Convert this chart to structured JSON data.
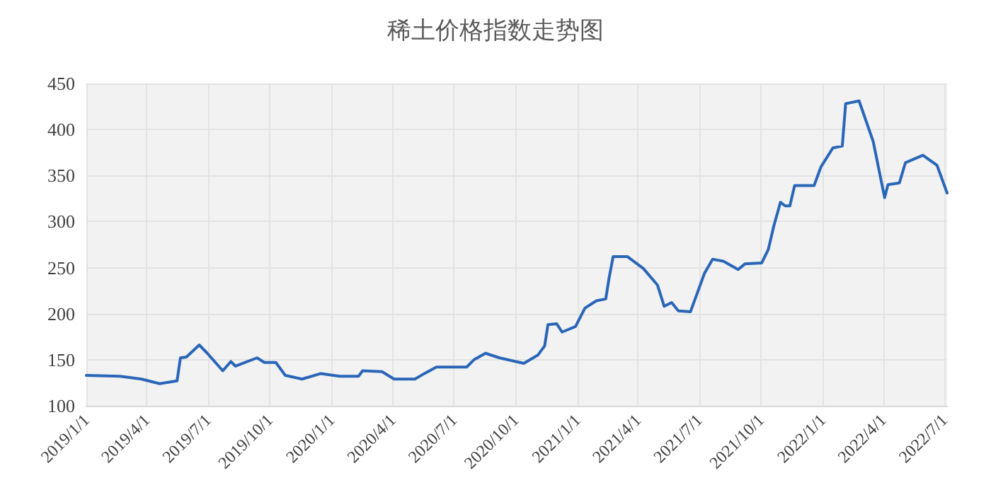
{
  "chart_data": {
    "type": "line",
    "title": "稀土价格指数走势图",
    "x": [
      "2019-01-01",
      "2019-02-20",
      "2019-03-24",
      "2019-04-20",
      "2019-05-16",
      "2019-05-21",
      "2019-05-30",
      "2019-06-18",
      "2019-06-30",
      "2019-07-23",
      "2019-08-04",
      "2019-08-11",
      "2019-09-12",
      "2019-09-23",
      "2019-10-10",
      "2019-10-24",
      "2019-11-18",
      "2019-12-16",
      "2020-01-13",
      "2020-02-10",
      "2020-02-16",
      "2020-03-16",
      "2020-04-03",
      "2020-05-04",
      "2020-05-18",
      "2020-06-05",
      "2020-06-19",
      "2020-07-20",
      "2020-07-31",
      "2020-08-17",
      "2020-09-07",
      "2020-10-13",
      "2020-11-03",
      "2020-11-13",
      "2020-11-18",
      "2020-12-01",
      "2020-12-09",
      "2020-12-29",
      "2021-01-12",
      "2021-01-29",
      "2021-02-12",
      "2021-02-17",
      "2021-02-23",
      "2021-03-16",
      "2021-04-09",
      "2021-04-30",
      "2021-05-10",
      "2021-05-21",
      "2021-05-31",
      "2021-06-18",
      "2021-06-30",
      "2021-07-09",
      "2021-07-21",
      "2021-08-06",
      "2021-08-28",
      "2021-09-07",
      "2021-10-02",
      "2021-10-12",
      "2021-10-20",
      "2021-10-30",
      "2021-11-06",
      "2021-11-13",
      "2021-11-20",
      "2021-12-19",
      "2021-12-29",
      "2022-01-16",
      "2022-01-30",
      "2022-02-04",
      "2022-02-24",
      "2022-03-17",
      "2022-04-03",
      "2022-04-08",
      "2022-04-25",
      "2022-05-04",
      "2022-05-30",
      "2022-06-20",
      "2022-07-05"
    ],
    "series": [
      {
        "color": "#2a66b8",
        "values": [
          133,
          132,
          129,
          124,
          127,
          152,
          153,
          166,
          157,
          138,
          148,
          143,
          152,
          147,
          147,
          133,
          129,
          135,
          132,
          132,
          138,
          137,
          129,
          129,
          135,
          142,
          142,
          142,
          150,
          157,
          152,
          146,
          155,
          165,
          188,
          189,
          180,
          186,
          206,
          214,
          216,
          239,
          262,
          262,
          249,
          231,
          208,
          212,
          203,
          202,
          226,
          244,
          259,
          257,
          248,
          254,
          255,
          270,
          295,
          321,
          317,
          317,
          339,
          339,
          359,
          380,
          382,
          428,
          431,
          387,
          326,
          340,
          342,
          364,
          372,
          361,
          331
        ]
      }
    ],
    "xlim": [
      "2019-01-01",
      "2022-07-05"
    ],
    "xticks": [
      {
        "value": "2019-01-01",
        "label": "2019/1/1"
      },
      {
        "value": "2019-04-01",
        "label": "2019/4/1"
      },
      {
        "value": "2019-07-01",
        "label": "2019/7/1"
      },
      {
        "value": "2019-10-01",
        "label": "2019/10/1"
      },
      {
        "value": "2020-01-01",
        "label": "2020/1/1"
      },
      {
        "value": "2020-04-01",
        "label": "2020/4/1"
      },
      {
        "value": "2020-07-01",
        "label": "2020/7/1"
      },
      {
        "value": "2020-10-01",
        "label": "2020/10/1"
      },
      {
        "value": "2021-01-01",
        "label": "2021/1/1"
      },
      {
        "value": "2021-04-01",
        "label": "2021/4/1"
      },
      {
        "value": "2021-07-01",
        "label": "2021/7/1"
      },
      {
        "value": "2021-10-01",
        "label": "2021/10/1"
      },
      {
        "value": "2022-01-01",
        "label": "2022/1/1"
      },
      {
        "value": "2022-04-01",
        "label": "2022/4/1"
      },
      {
        "value": "2022-07-01",
        "label": "2022/7/1"
      }
    ],
    "ylim": [
      100,
      450
    ],
    "yticks": [
      100,
      150,
      200,
      250,
      300,
      350,
      400,
      450
    ],
    "grid": true,
    "marker": "none",
    "line_style": "solid"
  }
}
